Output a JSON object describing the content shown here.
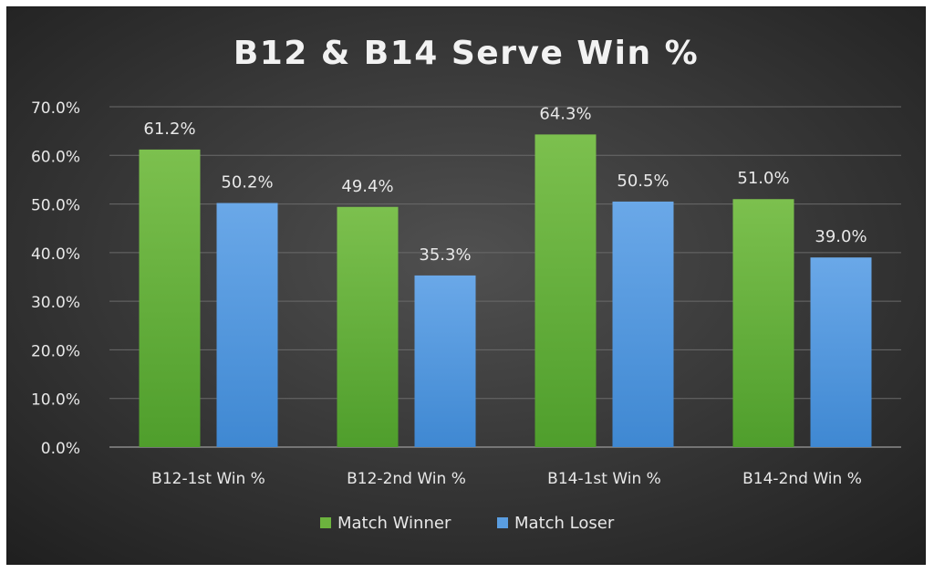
{
  "chart_data": {
    "type": "bar",
    "title": "B12 & B14 Serve Win %",
    "categories": [
      "B12-1st Win %",
      "B12-2nd Win %",
      "B14-1st Win %",
      "B14-2nd Win %"
    ],
    "series": [
      {
        "name": "Match Winner",
        "values": [
          61.2,
          49.4,
          64.3,
          51.0
        ],
        "color": "#6cb33e",
        "labels": [
          "61.2%",
          "49.4%",
          "64.3%",
          "51.0%"
        ]
      },
      {
        "name": "Match Loser",
        "values": [
          50.2,
          35.3,
          50.5,
          39.0
        ],
        "color": "#5a9de0",
        "labels": [
          "50.2%",
          "35.3%",
          "50.5%",
          "39.0%"
        ]
      }
    ],
    "ylim": [
      0,
      70
    ],
    "yticks": [
      "0.0%",
      "10.0%",
      "20.0%",
      "30.0%",
      "40.0%",
      "50.0%",
      "60.0%",
      "70.0%"
    ],
    "xlabel": "",
    "ylabel": "",
    "grid": true,
    "legend": "bottom-center",
    "colors": {
      "background_center": "#4d4d4d",
      "background_edge": "#1e1e1e",
      "text": "#e8e8e8",
      "grid": "#6a6a6a"
    }
  }
}
